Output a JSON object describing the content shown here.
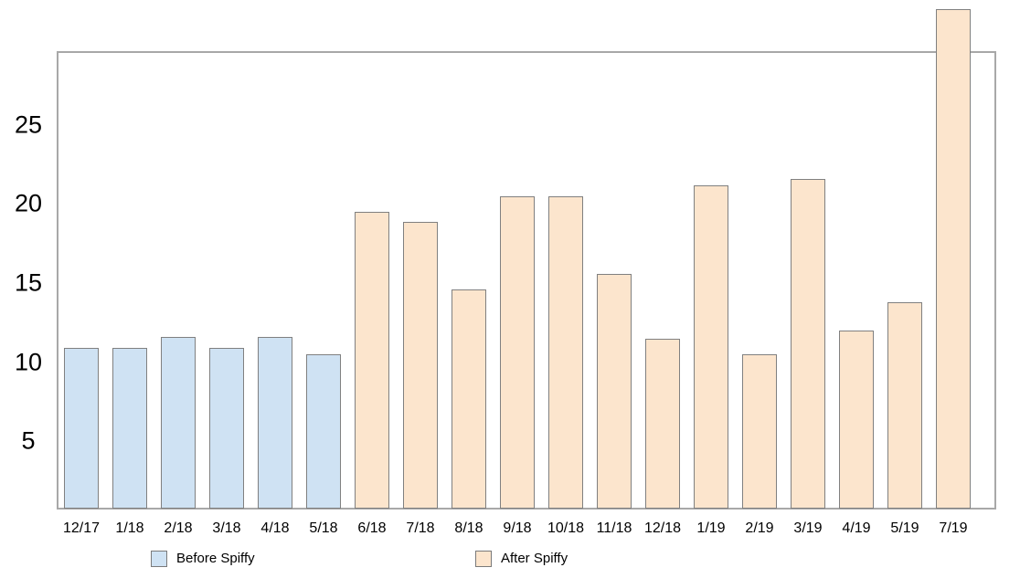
{
  "chart_data": {
    "type": "bar",
    "title": "",
    "xlabel": "",
    "ylabel": "",
    "categories": [
      "12/17",
      "1/18",
      "2/18",
      "3/18",
      "4/18",
      "5/18",
      "6/18",
      "7/18",
      "8/18",
      "9/18",
      "10/18",
      "11/18",
      "12/18",
      "1/19",
      "2/19",
      "3/19",
      "4/19",
      "5/19",
      "7/19"
    ],
    "series": [
      {
        "name": "Before Spiffy",
        "color": "#cfe2f3",
        "values": [
          10.9,
          10.9,
          11.6,
          10.9,
          11.6,
          10.5,
          null,
          null,
          null,
          null,
          null,
          null,
          null,
          null,
          null,
          null,
          null,
          null,
          null
        ]
      },
      {
        "name": "After Spiffy",
        "color": "#fce5cd",
        "values": [
          null,
          null,
          null,
          null,
          null,
          null,
          19.5,
          18.9,
          14.6,
          20.5,
          20.5,
          15.6,
          11.5,
          21.2,
          10.5,
          21.6,
          12.0,
          13.8,
          32.3
        ]
      }
    ],
    "yticks": [
      5,
      10,
      15,
      20,
      25
    ],
    "ylim": [
      0,
      29.6
    ],
    "grid": false,
    "legend_position": "bottom",
    "note": "Last bar (7/19) overflows above the top of the plot frame; month 6/19 is skipped between 5/19 and 7/19.",
    "style": {
      "bar_border_color": "#808080",
      "axis_frame_color": "#a8a8a8",
      "text_color": "#000000",
      "background": "#ffffff"
    }
  }
}
